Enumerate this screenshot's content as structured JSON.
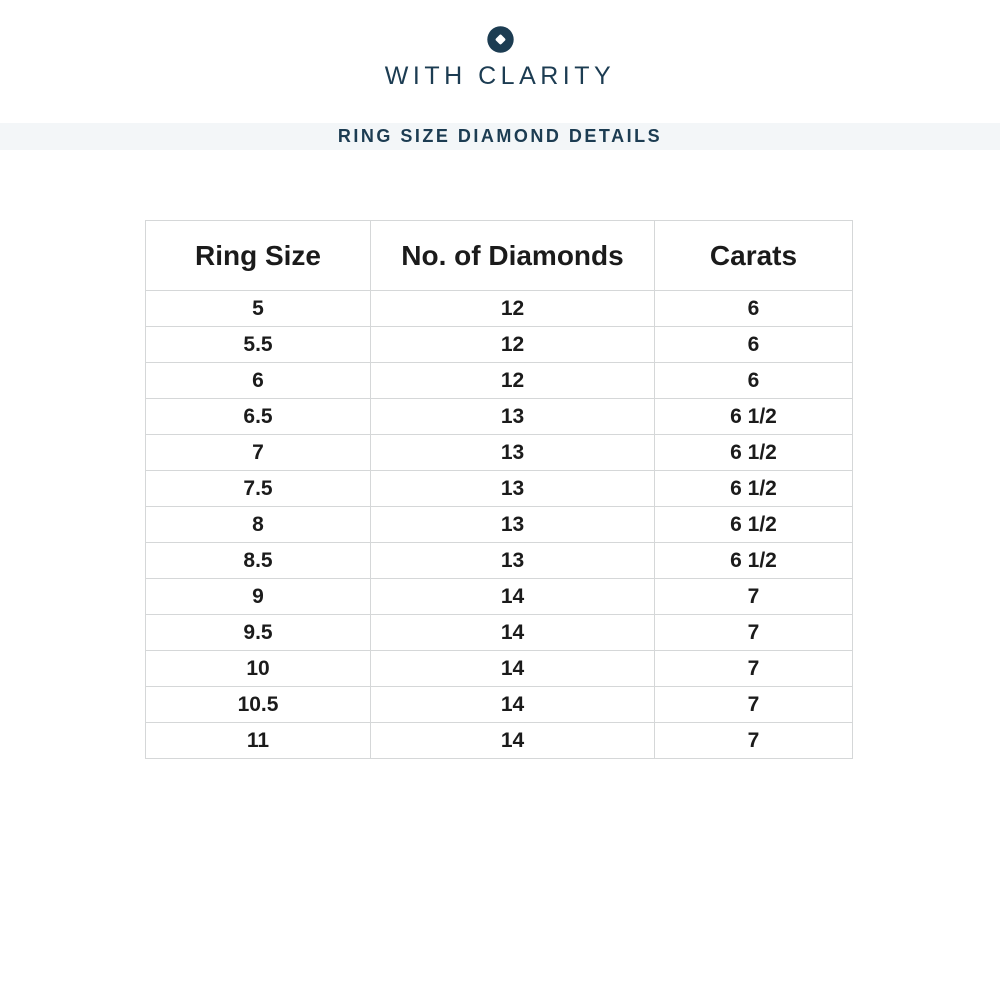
{
  "brand": {
    "name": "WITH CLARITY",
    "logo_icon": "circle-diamond-icon",
    "color": "#1c3c52"
  },
  "banner": {
    "title": "RING SIZE DIAMOND DETAILS",
    "background": "#f3f6f8",
    "text_color": "#1c3c52"
  },
  "table": {
    "headers": [
      "Ring Size",
      "No. of Diamonds",
      "Carats"
    ],
    "rows": [
      [
        "5",
        "12",
        "6"
      ],
      [
        "5.5",
        "12",
        "6"
      ],
      [
        "6",
        "12",
        "6"
      ],
      [
        "6.5",
        "13",
        "6 1/2"
      ],
      [
        "7",
        "13",
        "6 1/2"
      ],
      [
        "7.5",
        "13",
        "6 1/2"
      ],
      [
        "8",
        "13",
        "6 1/2"
      ],
      [
        "8.5",
        "13",
        "6 1/2"
      ],
      [
        "9",
        "14",
        "7"
      ],
      [
        "9.5",
        "14",
        "7"
      ],
      [
        "10",
        "14",
        "7"
      ],
      [
        "10.5",
        "14",
        "7"
      ],
      [
        "11",
        "14",
        "7"
      ]
    ],
    "border_color": "#d5d7d8"
  },
  "chart_data": {
    "type": "table",
    "title": "RING SIZE DIAMOND DETAILS",
    "columns": [
      "Ring Size",
      "No. of Diamonds",
      "Carats"
    ],
    "rows": [
      [
        "5",
        "12",
        "6"
      ],
      [
        "5.5",
        "12",
        "6"
      ],
      [
        "6",
        "12",
        "6"
      ],
      [
        "6.5",
        "13",
        "6 1/2"
      ],
      [
        "7",
        "13",
        "6 1/2"
      ],
      [
        "7.5",
        "13",
        "6 1/2"
      ],
      [
        "8",
        "13",
        "6 1/2"
      ],
      [
        "8.5",
        "13",
        "6 1/2"
      ],
      [
        "9",
        "14",
        "7"
      ],
      [
        "9.5",
        "14",
        "7"
      ],
      [
        "10",
        "14",
        "7"
      ],
      [
        "10.5",
        "14",
        "7"
      ],
      [
        "11",
        "14",
        "7"
      ]
    ],
    "notes": "Ring size to number of diamonds and total carat weight mapping; grid table with light gray borders, header row in larger semibold type."
  }
}
